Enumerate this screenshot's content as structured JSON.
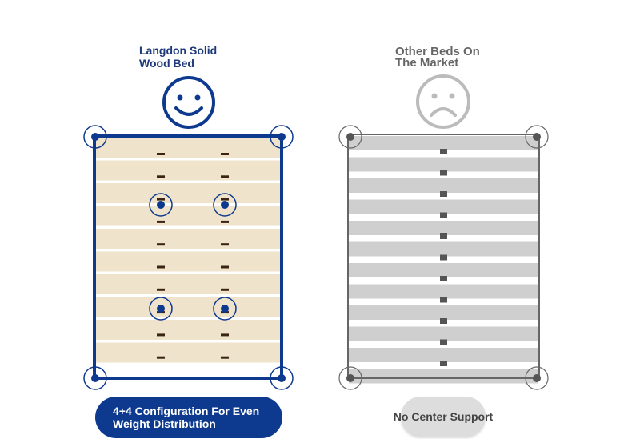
{
  "left": {
    "title": "Langdon Solid\nWood Bed",
    "face": "smiley-face-icon",
    "caption": "4+4 Configuration For Even\nWeight Distribution",
    "colors": {
      "accent": "#0d3a8e",
      "slat": "#efe3cb",
      "support": "#3b2414"
    }
  },
  "right": {
    "title": "Other Beds On\nThe Market",
    "face": "frowning-face-icon",
    "caption": "No Center Support",
    "colors": {
      "frame": "#666666",
      "slat": "#cfcfcf",
      "support": "#555555"
    }
  }
}
